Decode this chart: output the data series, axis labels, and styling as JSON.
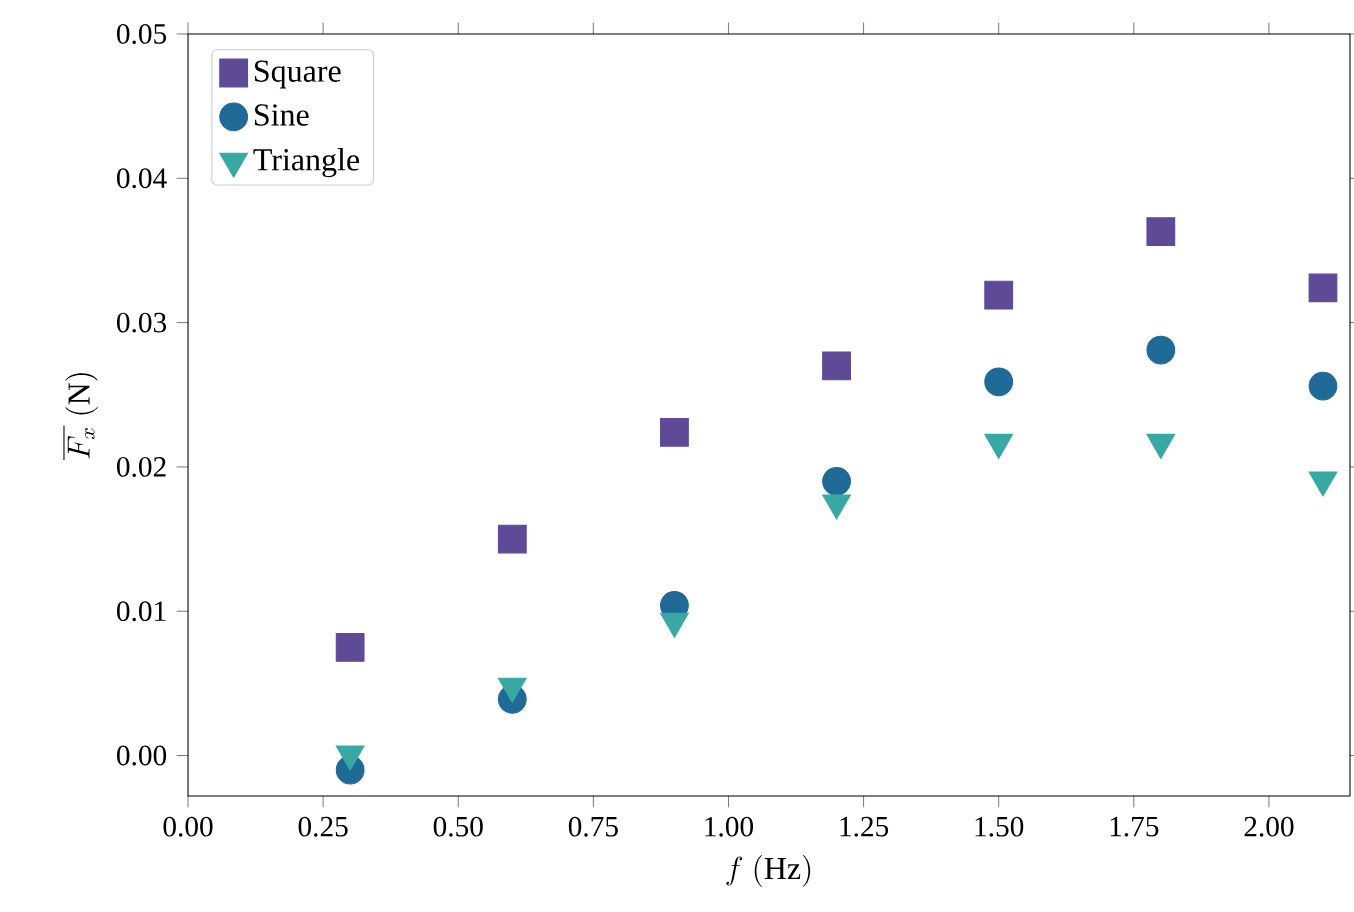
{
  "chart_data": {
    "type": "scatter",
    "xlabel": "f\\ \\mathrm{(Hz)}",
    "ylabel": "\\overline{F_x}\\ \\mathrm{(N)}",
    "x": [
      0.3,
      0.6,
      0.9,
      1.2,
      1.5,
      1.8,
      2.1
    ],
    "series": [
      {
        "name": "Square",
        "color": "#5e4a96",
        "marker": "square",
        "values": [
          0.0075,
          0.015,
          0.0224,
          0.027,
          0.0319,
          0.0363,
          0.0324
        ]
      },
      {
        "name": "Sine",
        "color": "#1f6a96",
        "marker": "circle",
        "values": [
          -0.001,
          0.0039,
          0.0104,
          0.019,
          0.0259,
          0.0281,
          0.0256
        ]
      },
      {
        "name": "Triangle",
        "color": "#38a8a4",
        "marker": "triangle",
        "values": [
          0.0001,
          0.0048,
          0.0093,
          0.0175,
          0.0217,
          0.0217,
          0.0191
        ]
      }
    ],
    "xlim": [
      0,
      2.15
    ],
    "ylim": [
      -0.0028,
      0.05
    ],
    "xticks": [
      {
        "value": 0,
        "label": "0.00"
      },
      {
        "value": 0.25,
        "label": "0.25"
      },
      {
        "value": 0.5,
        "label": "0.50"
      },
      {
        "value": 0.75,
        "label": "0.75"
      },
      {
        "value": 1,
        "label": "1.00"
      },
      {
        "value": 1.25,
        "label": "1.25"
      },
      {
        "value": 1.5,
        "label": "1.50"
      },
      {
        "value": 1.75,
        "label": "1.75"
      },
      {
        "value": 2,
        "label": "2.00"
      }
    ],
    "yticks": [
      {
        "value": 0,
        "label": "0.00"
      },
      {
        "value": 0.01,
        "label": "0.01"
      },
      {
        "value": 0.02,
        "label": "0.02"
      },
      {
        "value": 0.03,
        "label": "0.03"
      },
      {
        "value": 0.04,
        "label": "0.04"
      },
      {
        "value": 0.05,
        "label": "0.05"
      }
    ],
    "legend": "top left",
    "grid": false
  }
}
